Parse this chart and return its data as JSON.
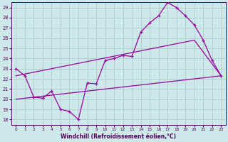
{
  "xlabel": "Windchill (Refroidissement éolien,°C)",
  "xlim": [
    -0.5,
    23.5
  ],
  "ylim": [
    17.5,
    29.5
  ],
  "yticks": [
    18,
    19,
    20,
    21,
    22,
    23,
    24,
    25,
    26,
    27,
    28,
    29
  ],
  "xticks": [
    0,
    1,
    2,
    3,
    4,
    5,
    6,
    7,
    8,
    9,
    10,
    11,
    12,
    13,
    14,
    15,
    16,
    17,
    18,
    19,
    20,
    21,
    22,
    23
  ],
  "bg_color": "#cce8e8",
  "grid_color": "#aacccc",
  "line_color": "#990099",
  "line1_x": [
    0,
    1,
    2,
    3,
    4,
    5,
    6,
    7,
    8,
    9,
    10,
    11,
    12,
    13,
    14,
    15,
    16,
    17,
    18,
    19,
    20,
    21,
    22,
    23
  ],
  "line1_y": [
    23.0,
    22.3,
    20.2,
    20.1,
    20.8,
    19.0,
    18.8,
    18.0,
    21.6,
    21.5,
    23.8,
    24.0,
    24.3,
    24.2,
    26.6,
    27.5,
    28.2,
    29.5,
    29.0,
    28.2,
    27.3,
    25.8,
    23.8,
    22.3
  ],
  "line2_x": [
    0,
    23
  ],
  "line2_y": [
    20.0,
    22.3
  ],
  "line3_x": [
    0,
    20,
    23
  ],
  "line3_y": [
    22.3,
    25.8,
    22.3
  ]
}
